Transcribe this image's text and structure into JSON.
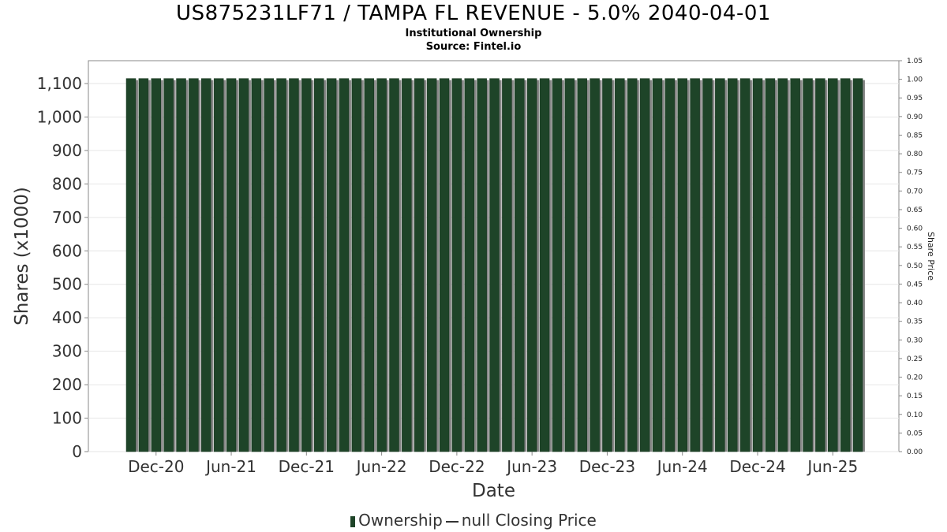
{
  "header": {
    "title": "US875231LF71 / TAMPA FL REVENUE - 5.0% 2040-04-01",
    "subtitle1": "Institutional Ownership",
    "subtitle2": "Source: Fintel.io"
  },
  "legend": {
    "ownership_label": "Ownership",
    "price_label": "null Closing Price"
  },
  "colors": {
    "bar": "#1e4428",
    "bar_shadow": "#888888",
    "grid": "#e6e6e6",
    "axis": "#888888"
  },
  "chart_data": {
    "type": "bar",
    "title": "US875231LF71 / TAMPA FL REVENUE - 5.0% 2040-04-01",
    "xlabel": "Date",
    "ylabel": "Shares (x1000)",
    "y2label": "Share Price",
    "ylim": [
      0,
      1100
    ],
    "y2lim": [
      0,
      1.05
    ],
    "yticks": [
      "0",
      "100",
      "200",
      "300",
      "400",
      "500",
      "600",
      "700",
      "800",
      "900",
      "1,000",
      "1,100"
    ],
    "y2ticks": [
      "0.00",
      "0.05",
      "0.10",
      "0.15",
      "0.20",
      "0.25",
      "0.30",
      "0.35",
      "0.40",
      "0.45",
      "0.50",
      "0.55",
      "0.60",
      "0.65",
      "0.70",
      "0.75",
      "0.80",
      "0.85",
      "0.90",
      "0.95",
      "1.00",
      "1.05"
    ],
    "xticks": [
      "Dec-20",
      "Jun-21",
      "Dec-21",
      "Jun-22",
      "Dec-22",
      "Jun-23",
      "Dec-23",
      "Jun-24",
      "Dec-24",
      "Jun-25"
    ],
    "xtick_bar_index": [
      2,
      8,
      14,
      20,
      26,
      32,
      38,
      44,
      50,
      56
    ],
    "bar_count": 59,
    "values": [
      1115,
      1115,
      1115,
      1115,
      1115,
      1115,
      1115,
      1115,
      1115,
      1115,
      1115,
      1115,
      1115,
      1115,
      1115,
      1115,
      1115,
      1115,
      1115,
      1115,
      1115,
      1115,
      1115,
      1115,
      1115,
      1115,
      1115,
      1115,
      1115,
      1115,
      1115,
      1115,
      1115,
      1115,
      1115,
      1115,
      1115,
      1115,
      1115,
      1115,
      1115,
      1115,
      1115,
      1115,
      1115,
      1115,
      1115,
      1115,
      1115,
      1115,
      1115,
      1115,
      1115,
      1115,
      1115,
      1115,
      1115,
      1115,
      1115
    ],
    "grid": true,
    "legend_position": "bottom"
  }
}
